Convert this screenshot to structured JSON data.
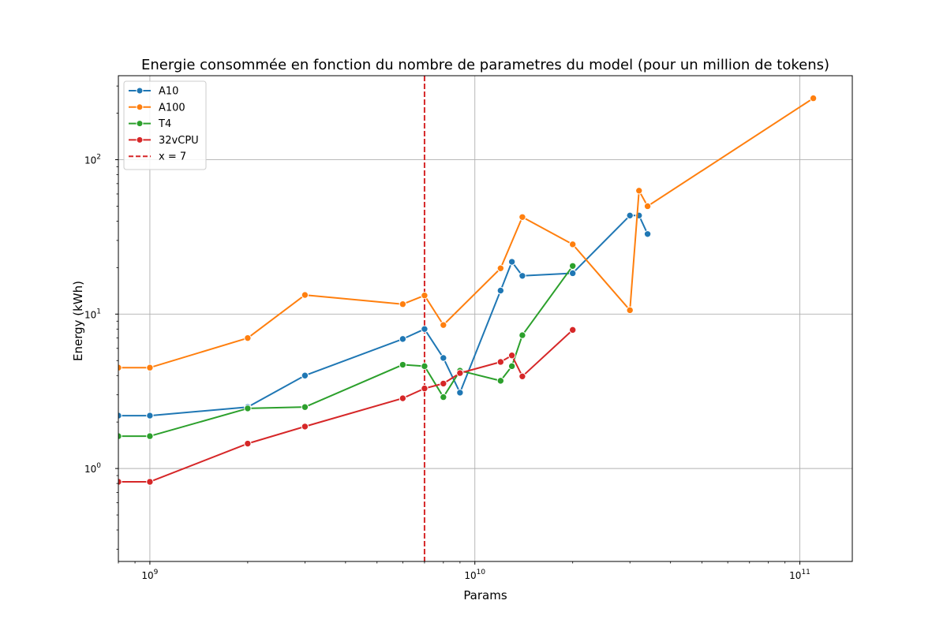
{
  "chart_data": {
    "type": "line",
    "title": "Energie consommée en fonction du nombre de parametres du model (pour un million de tokens)",
    "xlabel": "Params",
    "ylabel": "Energy (kWh)",
    "xscale": "log",
    "yscale": "log",
    "xlim": [
      800000000,
      145000000000
    ],
    "ylim": [
      0.25,
      350
    ],
    "grid": true,
    "legend_position": "top-left",
    "x_ticks": [
      {
        "value": 1000000000,
        "base": "10",
        "exp": "9"
      },
      {
        "value": 10000000000,
        "base": "10",
        "exp": "10"
      },
      {
        "value": 100000000000,
        "base": "10",
        "exp": "11"
      }
    ],
    "y_ticks": [
      {
        "value": 1,
        "base": "10",
        "exp": "0"
      },
      {
        "value": 10,
        "base": "10",
        "exp": "1"
      },
      {
        "value": 100,
        "base": "10",
        "exp": "2"
      }
    ],
    "series": [
      {
        "name": "A10",
        "color": "#1f77b4",
        "points": [
          [
            800000000,
            2.2
          ],
          [
            1000000000,
            2.2
          ],
          [
            2000000000,
            2.5
          ],
          [
            3000000000,
            4.0
          ],
          [
            6000000000,
            6.9
          ],
          [
            7000000000,
            8.0
          ],
          [
            8000000000,
            5.2
          ],
          [
            9000000000,
            3.1
          ],
          [
            12000000000,
            14.2
          ],
          [
            13000000000,
            21.8
          ],
          [
            14000000000,
            17.7
          ],
          [
            20000000000,
            18.4
          ],
          [
            30000000000,
            43.5
          ],
          [
            32000000000,
            43.5
          ],
          [
            34000000000,
            33.0
          ]
        ]
      },
      {
        "name": "A100",
        "color": "#ff7f0e",
        "points": [
          [
            800000000,
            4.5
          ],
          [
            1000000000,
            4.5
          ],
          [
            2000000000,
            7.0
          ],
          [
            3000000000,
            13.3
          ],
          [
            6000000000,
            11.6
          ],
          [
            7000000000,
            13.2
          ],
          [
            8000000000,
            8.5
          ],
          [
            12000000000,
            19.8
          ],
          [
            14000000000,
            42.5
          ],
          [
            20000000000,
            28.3
          ],
          [
            30000000000,
            10.6
          ],
          [
            32000000000,
            63.0
          ],
          [
            34000000000,
            50.0
          ],
          [
            110000000000,
            250.0
          ]
        ]
      },
      {
        "name": "T4",
        "color": "#2ca02c",
        "points": [
          [
            800000000,
            1.62
          ],
          [
            1000000000,
            1.62
          ],
          [
            2000000000,
            2.45
          ],
          [
            3000000000,
            2.5
          ],
          [
            6000000000,
            4.7
          ],
          [
            7000000000,
            4.6
          ],
          [
            8000000000,
            2.9
          ],
          [
            9000000000,
            4.3
          ],
          [
            12000000000,
            3.7
          ],
          [
            13000000000,
            4.6
          ],
          [
            14000000000,
            7.3
          ],
          [
            20000000000,
            20.5
          ]
        ]
      },
      {
        "name": "32vCPU",
        "color": "#d62728",
        "points": [
          [
            800000000,
            0.82
          ],
          [
            1000000000,
            0.82
          ],
          [
            2000000000,
            1.45
          ],
          [
            3000000000,
            1.87
          ],
          [
            6000000000,
            2.85
          ],
          [
            7000000000,
            3.3
          ],
          [
            8000000000,
            3.55
          ],
          [
            9000000000,
            4.15
          ],
          [
            12000000000,
            4.9
          ],
          [
            13000000000,
            5.4
          ],
          [
            14000000000,
            3.95
          ],
          [
            20000000000,
            7.9
          ]
        ]
      }
    ],
    "reference_line": {
      "name": "x = 7",
      "x": 7000000000,
      "color": "#d62728",
      "style": "dashed"
    }
  }
}
